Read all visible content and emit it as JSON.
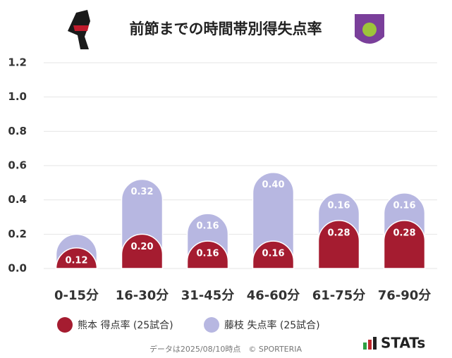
{
  "chart_data": {
    "type": "bar",
    "stacked": true,
    "title": "前節までの時間帯別得失点率",
    "categories": [
      "0-15分",
      "16-30分",
      "31-45分",
      "46-60分",
      "61-75分",
      "76-90分"
    ],
    "series": [
      {
        "name": "熊本 得点率 (25試合)",
        "color": "#a51c30",
        "values": [
          0.12,
          0.2,
          0.16,
          0.16,
          0.28,
          0.28
        ],
        "value_labels": [
          "0.12",
          "0.20",
          "0.16",
          "0.16",
          "0.28",
          "0.28"
        ]
      },
      {
        "name": "藤枝 失点率 (25試合)",
        "color": "#b7b7e1",
        "values": [
          0.08,
          0.32,
          0.16,
          0.4,
          0.16,
          0.16
        ],
        "value_labels": [
          null,
          "0.32",
          "0.16",
          "0.40",
          "0.16",
          "0.16"
        ]
      }
    ],
    "ylim": [
      0,
      1.2
    ],
    "yticks": [
      {
        "value": 0,
        "label": "0.0"
      },
      0.2,
      0.4,
      0.6,
      0.8,
      {
        "value": 1,
        "label": "1.0"
      },
      1.2
    ],
    "grid": true,
    "footer": "データは2025/08/10時点　© SPORTERIA",
    "brand": "STATs"
  }
}
